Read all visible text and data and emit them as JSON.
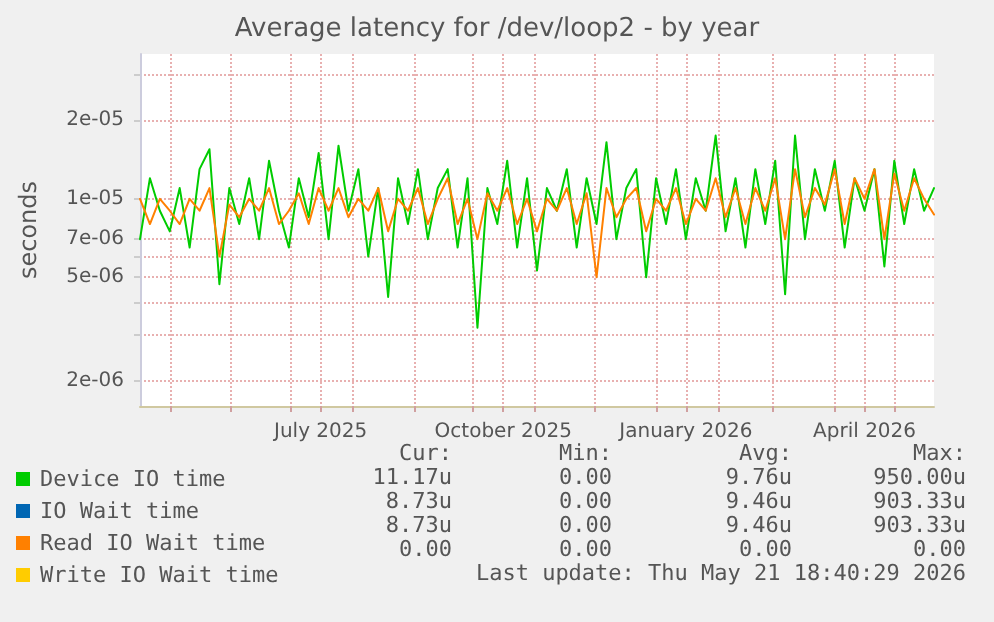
{
  "chart_data": {
    "type": "line",
    "title": "Average latency for /dev/loop2 - by year",
    "ylabel": "seconds",
    "log": "y",
    "grid": true,
    "legend": "bottom left",
    "marker": "none",
    "line_style": "solid",
    "xlim": [
      "2025-04-16",
      "2026-05-21"
    ],
    "xticks": [
      {
        "value": "2025-05-01",
        "label": null
      },
      {
        "value": "2025-06-01",
        "label": null
      },
      {
        "value": "2025-07-01",
        "label": null
      },
      {
        "value": "2025-07-16",
        "label": "July 2025"
      },
      {
        "value": "2025-08-01",
        "label": null
      },
      {
        "value": "2025-09-01",
        "label": null
      },
      {
        "value": "2025-10-01",
        "label": null
      },
      {
        "value": "2025-10-16",
        "label": "October 2025"
      },
      {
        "value": "2025-11-01",
        "label": null
      },
      {
        "value": "2025-12-01",
        "label": null
      },
      {
        "value": "2026-01-01",
        "label": null
      },
      {
        "value": "2026-01-16",
        "label": "January 2026"
      },
      {
        "value": "2026-02-01",
        "label": null
      },
      {
        "value": "2026-03-01",
        "label": null
      },
      {
        "value": "2026-04-01",
        "label": null
      },
      {
        "value": "2026-04-16",
        "label": "April 2026"
      },
      {
        "value": "2026-05-01",
        "label": null
      }
    ],
    "ylim": [
      1.6e-06,
      3.6e-05
    ],
    "yticks": [
      {
        "value": 2e-06,
        "label": "2e-06"
      },
      {
        "value": 3e-06,
        "label": null
      },
      {
        "value": 4e-06,
        "label": null
      },
      {
        "value": 5e-06,
        "label": "5e-06"
      },
      {
        "value": 6e-06,
        "label": null
      },
      {
        "value": 7e-06,
        "label": "7e-06"
      },
      {
        "value": 1e-05,
        "label": "1e-05"
      },
      {
        "value": 2e-05,
        "label": "2e-05"
      },
      {
        "value": 3e-05,
        "label": null
      }
    ],
    "x": [
      "2025-04-16",
      "2025-04-21",
      "2025-04-26",
      "2025-05-01",
      "2025-05-06",
      "2025-05-11",
      "2025-05-16",
      "2025-05-21",
      "2025-05-26",
      "2025-05-31",
      "2025-06-05",
      "2025-06-10",
      "2025-06-15",
      "2025-06-20",
      "2025-06-25",
      "2025-06-30",
      "2025-07-05",
      "2025-07-10",
      "2025-07-15",
      "2025-07-20",
      "2025-07-25",
      "2025-07-30",
      "2025-08-04",
      "2025-08-09",
      "2025-08-14",
      "2025-08-19",
      "2025-08-24",
      "2025-08-29",
      "2025-09-03",
      "2025-09-08",
      "2025-09-13",
      "2025-09-18",
      "2025-09-23",
      "2025-09-28",
      "2025-10-03",
      "2025-10-08",
      "2025-10-13",
      "2025-10-18",
      "2025-10-23",
      "2025-10-28",
      "2025-11-02",
      "2025-11-07",
      "2025-11-12",
      "2025-11-17",
      "2025-11-22",
      "2025-11-27",
      "2025-12-02",
      "2025-12-07",
      "2025-12-12",
      "2025-12-17",
      "2025-12-22",
      "2025-12-27",
      "2026-01-01",
      "2026-01-06",
      "2026-01-11",
      "2026-01-16",
      "2026-01-21",
      "2026-01-26",
      "2026-01-31",
      "2026-02-05",
      "2026-02-10",
      "2026-02-15",
      "2026-02-20",
      "2026-02-25",
      "2026-03-02",
      "2026-03-07",
      "2026-03-12",
      "2026-03-17",
      "2026-03-22",
      "2026-03-27",
      "2026-04-01",
      "2026-04-06",
      "2026-04-11",
      "2026-04-16",
      "2026-04-21",
      "2026-04-26",
      "2026-05-01",
      "2026-05-06",
      "2026-05-11",
      "2026-05-16",
      "2026-05-21"
    ],
    "series": [
      {
        "name": "Device IO time",
        "color": "#00cc00",
        "values": [
          7e-06,
          1.2e-05,
          9e-06,
          7.5e-06,
          1.1e-05,
          6.5e-06,
          1.3e-05,
          1.55e-05,
          4.7e-06,
          1.1e-05,
          8e-06,
          1.2e-05,
          7e-06,
          1.4e-05,
          9e-06,
          6.5e-06,
          1.2e-05,
          8.5e-06,
          1.5e-05,
          7e-06,
          1.6e-05,
          9e-06,
          1.3e-05,
          6e-06,
          1.1e-05,
          4.2e-06,
          1.2e-05,
          8e-06,
          1.3e-05,
          7e-06,
          1.1e-05,
          1.3e-05,
          6.5e-06,
          1.2e-05,
          3.2e-06,
          1.1e-05,
          8e-06,
          1.4e-05,
          6.5e-06,
          1.2e-05,
          5.3e-06,
          1.1e-05,
          9e-06,
          1.3e-05,
          6.5e-06,
          1.2e-05,
          8e-06,
          1.65e-05,
          7e-06,
          1.1e-05,
          1.3e-05,
          5e-06,
          1.2e-05,
          8e-06,
          1.3e-05,
          7e-06,
          1.2e-05,
          9e-06,
          1.75e-05,
          7.5e-06,
          1.2e-05,
          6.5e-06,
          1.3e-05,
          8e-06,
          1.4e-05,
          4.3e-06,
          1.75e-05,
          7e-06,
          1.3e-05,
          9e-06,
          1.4e-05,
          6.5e-06,
          1.2e-05,
          9e-06,
          1.3e-05,
          5.5e-06,
          1.4e-05,
          8e-06,
          1.3e-05,
          9e-06,
          1.1e-05
        ]
      },
      {
        "name": "IO Wait time",
        "color": "#0066b3",
        "values": [
          null,
          null,
          null,
          null,
          null,
          null,
          null,
          null,
          null,
          null,
          null,
          null,
          null,
          null,
          null,
          null,
          null,
          null,
          null,
          null,
          null,
          null,
          null,
          null,
          null,
          null,
          null,
          null,
          null,
          null,
          null,
          null,
          null,
          null,
          null,
          null,
          null,
          null,
          null,
          null,
          null,
          null,
          null,
          null,
          null,
          null,
          null,
          null,
          null,
          null,
          null,
          null,
          null,
          null,
          null,
          null,
          null,
          null,
          null,
          null,
          null,
          null,
          null,
          null,
          null,
          null,
          null,
          null,
          null,
          null,
          null,
          null,
          null,
          null,
          null,
          null,
          null,
          null,
          null,
          null,
          null
        ]
      },
      {
        "name": "Read IO Wait time",
        "color": "#ff8000",
        "values": [
          1e-05,
          8e-06,
          1e-05,
          9e-06,
          8e-06,
          1e-05,
          9e-06,
          1.1e-05,
          6e-06,
          9.5e-06,
          8.5e-06,
          1e-05,
          9e-06,
          1.1e-05,
          8e-06,
          9e-06,
          1.05e-05,
          8e-06,
          1.1e-05,
          9e-06,
          1.1e-05,
          8.5e-06,
          1e-05,
          9e-06,
          1.1e-05,
          7.5e-06,
          1e-05,
          9e-06,
          1.1e-05,
          8e-06,
          1e-05,
          1.2e-05,
          8e-06,
          1e-05,
          7e-06,
          1.05e-05,
          9e-06,
          1.1e-05,
          8e-06,
          1e-05,
          7.5e-06,
          1e-05,
          9e-06,
          1.1e-05,
          8e-06,
          1.05e-05,
          5e-06,
          1.1e-05,
          8.5e-06,
          1e-05,
          1.1e-05,
          7.5e-06,
          1e-05,
          9e-06,
          1.1e-05,
          8e-06,
          1e-05,
          9e-06,
          1.2e-05,
          8.5e-06,
          1.1e-05,
          8e-06,
          1.1e-05,
          9e-06,
          1.2e-05,
          7e-06,
          1.3e-05,
          8.5e-06,
          1.1e-05,
          9.5e-06,
          1.3e-05,
          8e-06,
          1.2e-05,
          1e-05,
          1.3e-05,
          7e-06,
          1.25e-05,
          9e-06,
          1.2e-05,
          1e-05,
          8.7e-06
        ]
      },
      {
        "name": "Write IO Wait time",
        "color": "#ffcc00",
        "values": [
          null,
          null,
          null,
          null,
          null,
          null,
          null,
          null,
          null,
          null,
          null,
          null,
          null,
          null,
          null,
          null,
          null,
          null,
          null,
          null,
          null,
          null,
          null,
          null,
          null,
          null,
          null,
          null,
          null,
          null,
          null,
          null,
          null,
          null,
          null,
          null,
          null,
          null,
          null,
          null,
          null,
          null,
          null,
          null,
          null,
          null,
          null,
          null,
          null,
          null,
          null,
          null,
          null,
          null,
          null,
          null,
          null,
          null,
          null,
          null,
          null,
          null,
          null,
          null,
          null,
          null,
          null,
          null,
          null,
          null,
          null,
          null,
          null,
          null,
          null,
          null,
          null,
          null,
          null,
          null,
          null
        ]
      }
    ],
    "annotations": [
      "Cur:",
      "Min:",
      "Avg:",
      "Max:",
      "11.17u",
      "0.00",
      "9.76u",
      "950.00u",
      "8.73u",
      "0.00",
      "9.46u",
      "903.33u",
      "8.73u",
      "0.00",
      "9.46u",
      "903.33u",
      "0.00",
      "0.00",
      "0.00",
      "0.00",
      "Last update: Thu May 21 18:40:29 2026"
    ]
  }
}
